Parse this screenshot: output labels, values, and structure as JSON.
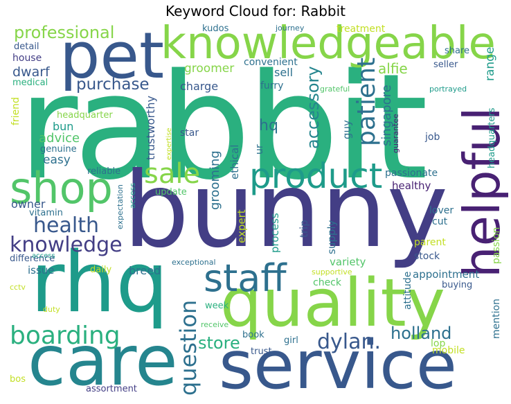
{
  "title": "Keyword Cloud for: Rabbit",
  "colors": {
    "purple": "#482173",
    "indigo": "#433e85",
    "blue": "#38588c",
    "steel": "#2d708e",
    "teal": "#25858e",
    "aqua": "#1e9b8a",
    "green": "#2ab07f",
    "mint": "#52c569",
    "lime": "#86d549",
    "yellow": "#c2df23"
  },
  "words": {
    "rabbit": "rabbit",
    "bunny": "bunny",
    "rhq": "rhq",
    "care": "care",
    "service": "service",
    "quality": "quality",
    "pet": "pet",
    "knowledgeable": "knowledgeable",
    "helpful": "helpful",
    "shop": "shop",
    "product": "product",
    "staff": "staff",
    "sale": "sale",
    "health": "health",
    "knowledge": "knowledge",
    "boarding": "boarding",
    "patient": "patient",
    "question": "question",
    "dylan": "dylan.",
    "professional": "professional",
    "purchase": "purchase",
    "store": "store",
    "holland": "holland",
    "accessory": "accessory",
    "alfie": "alfie",
    "dwarf": "dwarf",
    "grooming": "grooming",
    "hq": "hq",
    "advice": "advice",
    "bun": "bun",
    "easy": "easy",
    "owner": "owner",
    "groomer": "groomer",
    "charge": "charge",
    "sell": "sell",
    "singapore": "singapore",
    "range": "range",
    "convenient": "convenient",
    "furry": "furry",
    "house": "house",
    "detail": "detail",
    "medical": "medical",
    "friend": "friend",
    "headquarter": "headquarter",
    "genuine": "genuine",
    "reliable": "reliable",
    "trustworthy": "trustworthy",
    "star": "star",
    "ethical": "ethical",
    "ur": "ur",
    "guy": "guy",
    "job": "job",
    "passionate": "passionate",
    "healthy": "healthy",
    "update": "update",
    "vitamin": "vitamin",
    "lover": "lover",
    "cut": "cut",
    "expert": "expert",
    "process": "process",
    "supply": "supply",
    "trip": "trip",
    "parent": "parent",
    "passion": "passion",
    "difference": "difference",
    "variety": "variety",
    "stock": "stock",
    "issue": "issue",
    "breed": "breed",
    "appointment": "appointment",
    "buying": "buying",
    "daily": "daily",
    "attitude": "attitude",
    "check": "check",
    "week": "week",
    "mention": "mention",
    "book": "book",
    "girl": "girl",
    "lop": "lop",
    "mobile": "mobile",
    "trust": "trust",
    "bos": "bos",
    "assortment": "assortment",
    "cctv": "cctv",
    "duty": "duty",
    "receive": "receive",
    "access": "access",
    "exceptional": "exceptional",
    "supportive": "supportive",
    "expectation": "expectation",
    "expertise": "expertise",
    "guarantee": "guarantee",
    "headquarters": "headquarters",
    "grateful": "grateful",
    "portrayed": "portrayed",
    "seller": "seller",
    "share": "share",
    "treatment": "treatment",
    "journey": "journey",
    "kudos": "kudos"
  }
}
